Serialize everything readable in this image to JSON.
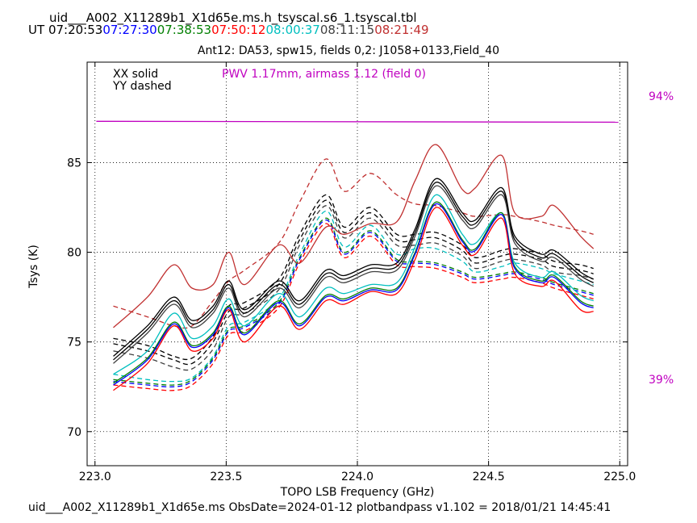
{
  "header": {
    "file_title": "uid___A002_X11289b1_X1d65e.ms.h_tsyscal.s6_1.tsyscal.tbl",
    "ut_label": "UT",
    "ut_times": [
      {
        "text": "07:20:53",
        "color": "#000000"
      },
      {
        "text": "07:27:30",
        "color": "#0000ff"
      },
      {
        "text": "07:38:53",
        "color": "#007f00"
      },
      {
        "text": "07:50:12",
        "color": "#ff0000"
      },
      {
        "text": "08:00:37",
        "color": "#00bfbf"
      },
      {
        "text": "08:11:15",
        "color": "#404040"
      },
      {
        "text": "08:21:49",
        "color": "#c03030"
      }
    ]
  },
  "footer": "uid___A002_X11289b1_X1d65e.ms  ObsDate=2024-01-12   plotbandpass v1.102 = 2018/01/21 14:45:41",
  "legend": {
    "xx": "XX solid",
    "yy": "YY dashed"
  },
  "pwv_text": "PWV 1.17mm, airmass 1.12 (field 0)",
  "transmission_labels": {
    "high": "94%",
    "low": "39%"
  },
  "chart_data": {
    "type": "line",
    "title": "Ant12: DA53,  spw15,  fields 0,2: J1058+0133,Field_40",
    "xlabel": "TOPO LSB Frequency (GHz)",
    "ylabel": "Tsys (K)",
    "xlim": [
      222.97,
      225.03
    ],
    "ylim": [
      68.1,
      90.6
    ],
    "xticks": [
      223.0,
      223.5,
      224.0,
      224.5,
      225.0
    ],
    "xtick_labels": [
      "223.0",
      "223.5",
      "224.0",
      "224.5",
      "225.0"
    ],
    "yticks": [
      70,
      75,
      80,
      85
    ],
    "ytick_labels": [
      "70",
      "75",
      "80",
      "85"
    ],
    "grid": true,
    "x": [
      223.07,
      223.2,
      223.3,
      223.37,
      223.45,
      223.51,
      223.57,
      223.7,
      223.78,
      223.88,
      223.95,
      224.05,
      224.15,
      224.22,
      224.3,
      224.4,
      224.45,
      224.55,
      224.6,
      224.7,
      224.75,
      224.85,
      224.9
    ],
    "series": [
      {
        "pol": "XX",
        "color": "#000000",
        "dash": false,
        "values": [
          74.2,
          75.9,
          77.5,
          76.2,
          77.0,
          78.4,
          76.8,
          78.4,
          77.3,
          79.0,
          78.7,
          79.3,
          79.4,
          81.3,
          84.1,
          82.2,
          81.8,
          83.6,
          80.9,
          79.9,
          80.1,
          78.9,
          78.5
        ]
      },
      {
        "pol": "XX",
        "color": "#000000",
        "dash": false,
        "values": [
          74.0,
          75.7,
          77.3,
          76.0,
          76.8,
          78.2,
          76.6,
          78.2,
          77.1,
          78.8,
          78.5,
          79.1,
          79.2,
          81.1,
          83.9,
          82.0,
          81.6,
          83.4,
          80.7,
          79.7,
          79.9,
          78.7,
          78.3
        ]
      },
      {
        "pol": "XX",
        "color": "#404040",
        "dash": false,
        "values": [
          73.8,
          75.5,
          77.1,
          75.8,
          76.6,
          78.0,
          76.4,
          78.0,
          76.9,
          78.6,
          78.3,
          78.9,
          79.0,
          80.9,
          83.7,
          81.8,
          81.4,
          83.2,
          80.5,
          79.5,
          79.7,
          78.5,
          78.1
        ]
      },
      {
        "pol": "XX",
        "color": "#00bfbf",
        "dash": false,
        "values": [
          73.2,
          74.5,
          76.6,
          75.2,
          75.9,
          77.4,
          75.9,
          77.7,
          76.4,
          78.0,
          77.7,
          78.2,
          78.3,
          80.3,
          83.2,
          81.0,
          80.5,
          82.2,
          79.4,
          78.6,
          78.9,
          77.6,
          77.3
        ]
      },
      {
        "pol": "XX",
        "color": "#007f00",
        "dash": false,
        "values": [
          72.7,
          74.1,
          76.1,
          74.8,
          75.5,
          77.0,
          75.5,
          77.3,
          76.0,
          77.6,
          77.4,
          78.0,
          78.0,
          80.0,
          82.8,
          80.7,
          80.2,
          82.2,
          79.2,
          78.4,
          78.7,
          77.3,
          77.0
        ]
      },
      {
        "pol": "XX",
        "color": "#0000ff",
        "dash": false,
        "values": [
          72.6,
          74.0,
          76.0,
          74.7,
          75.4,
          76.9,
          75.4,
          77.2,
          75.9,
          77.5,
          77.3,
          77.9,
          77.9,
          79.9,
          82.7,
          80.6,
          80.1,
          82.1,
          79.1,
          78.3,
          78.6,
          77.2,
          76.9
        ]
      },
      {
        "pol": "XX",
        "color": "#ff0000",
        "dash": false,
        "values": [
          72.3,
          73.8,
          75.9,
          74.5,
          75.2,
          76.8,
          75.0,
          77.0,
          75.7,
          77.3,
          77.1,
          77.8,
          77.7,
          79.6,
          82.5,
          80.4,
          79.9,
          81.9,
          78.8,
          78.1,
          78.4,
          76.8,
          76.7
        ]
      },
      {
        "pol": "XX",
        "color": "#c03030",
        "dash": false,
        "values": [
          75.8,
          77.5,
          79.3,
          78.0,
          78.2,
          80.0,
          78.2,
          80.4,
          79.4,
          81.4,
          81.0,
          81.6,
          81.7,
          84.0,
          86.0,
          83.5,
          83.6,
          85.4,
          82.2,
          82.0,
          82.6,
          80.9,
          80.2
        ]
      },
      {
        "pol": "YY",
        "color": "#000000",
        "dash": true,
        "values": [
          75.2,
          74.8,
          74.2,
          74.1,
          75.3,
          77.0,
          77.2,
          78.5,
          81.0,
          83.2,
          81.4,
          82.5,
          81.0,
          81.0,
          81.1,
          80.4,
          79.7,
          80.1,
          80.2,
          79.9,
          79.5,
          79.3,
          79.1
        ]
      },
      {
        "pol": "YY",
        "color": "#000000",
        "dash": true,
        "values": [
          74.9,
          74.5,
          74.0,
          73.8,
          75.0,
          76.7,
          76.9,
          78.2,
          80.7,
          82.9,
          81.1,
          82.2,
          80.7,
          80.7,
          80.8,
          80.1,
          79.4,
          79.8,
          79.9,
          79.6,
          79.2,
          79.0,
          78.8
        ]
      },
      {
        "pol": "YY",
        "color": "#404040",
        "dash": true,
        "values": [
          74.5,
          74.1,
          73.6,
          73.5,
          74.6,
          76.4,
          76.6,
          77.9,
          80.4,
          82.6,
          80.8,
          81.9,
          80.4,
          80.4,
          80.5,
          79.8,
          79.1,
          79.5,
          79.6,
          79.3,
          78.9,
          78.7,
          78.5
        ]
      },
      {
        "pol": "YY",
        "color": "#00bfbf",
        "dash": true,
        "values": [
          73.2,
          72.9,
          72.8,
          73.0,
          74.2,
          75.9,
          76.1,
          77.4,
          79.9,
          82.3,
          80.3,
          81.5,
          79.9,
          80.2,
          80.2,
          79.5,
          78.9,
          79.2,
          79.4,
          79.1,
          78.8,
          78.4,
          78.2
        ]
      },
      {
        "pol": "YY",
        "color": "#007f00",
        "dash": true,
        "values": [
          72.9,
          72.7,
          72.6,
          72.9,
          74.1,
          75.7,
          75.9,
          77.2,
          79.7,
          81.9,
          80.0,
          81.2,
          79.6,
          79.5,
          79.4,
          78.9,
          78.6,
          78.8,
          78.9,
          78.6,
          78.3,
          77.9,
          77.7
        ]
      },
      {
        "pol": "YY",
        "color": "#0000ff",
        "dash": true,
        "values": [
          72.8,
          72.6,
          72.5,
          72.8,
          74.0,
          75.6,
          75.8,
          77.1,
          79.6,
          81.8,
          79.9,
          81.1,
          79.5,
          79.4,
          79.3,
          78.8,
          78.5,
          78.7,
          78.8,
          78.5,
          78.2,
          77.8,
          77.6
        ]
      },
      {
        "pol": "YY",
        "color": "#ff0000",
        "dash": true,
        "values": [
          72.6,
          72.4,
          72.3,
          72.6,
          73.8,
          75.4,
          75.6,
          76.9,
          79.4,
          81.6,
          79.7,
          80.9,
          79.3,
          79.2,
          79.1,
          78.6,
          78.3,
          78.5,
          78.6,
          78.3,
          78.0,
          77.6,
          77.4
        ]
      },
      {
        "pol": "YY",
        "color": "#c03030",
        "dash": true,
        "values": [
          77.0,
          76.4,
          75.9,
          75.9,
          77.3,
          78.4,
          79.0,
          80.5,
          82.8,
          85.2,
          83.4,
          84.4,
          83.2,
          82.7,
          82.6,
          82.2,
          82.0,
          82.1,
          82.0,
          81.7,
          81.5,
          81.2,
          81.0
        ]
      }
    ],
    "transmission": {
      "color": "#c000c0",
      "x": [
        223.0,
        225.0
      ],
      "values": [
        87.3,
        87.25
      ]
    }
  }
}
